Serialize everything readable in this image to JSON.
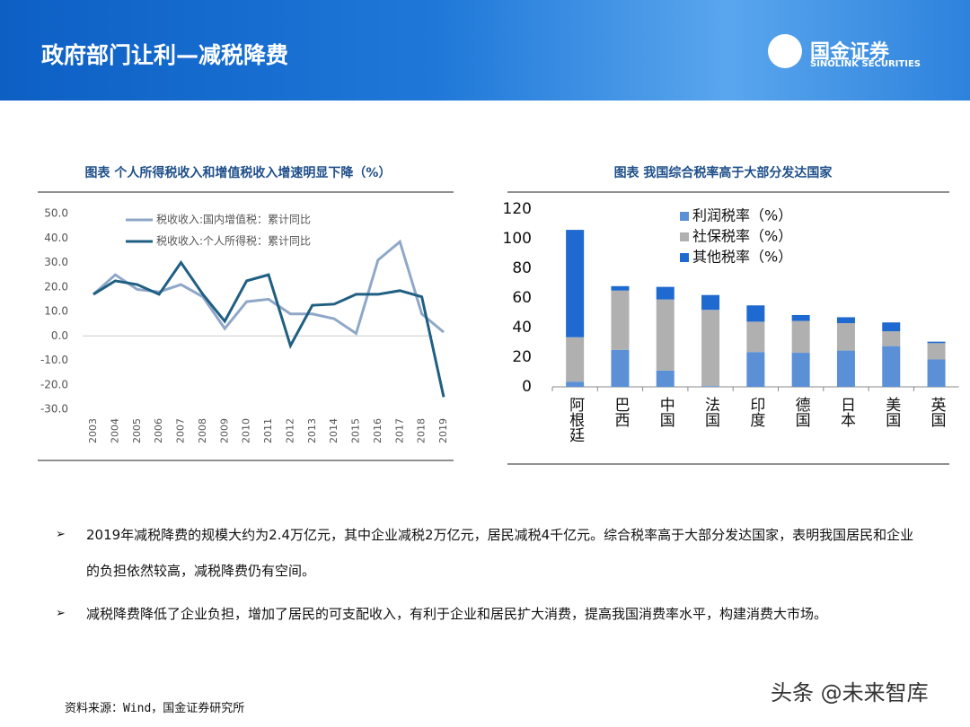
{
  "header": {
    "title": "政府部门让利—减税降费",
    "logo_name": "国金证券",
    "logo_sub": "SINOLINK SECURITIES"
  },
  "chart_data": [
    {
      "type": "line",
      "title": "图表  个人所得税收入和增值税收入增速明显下降（%）",
      "categories": [
        "2003",
        "2004",
        "2005",
        "2006",
        "2007",
        "2008",
        "2009",
        "2010",
        "2011",
        "2012",
        "2013",
        "2014",
        "2015",
        "2016",
        "2017",
        "2018",
        "2019"
      ],
      "series": [
        {
          "name": "税收收入:国内增值税：累计同比",
          "color": "#8fa8c8",
          "values": [
            17,
            25,
            19,
            18,
            21,
            16,
            3,
            14,
            15,
            9,
            9,
            7,
            1,
            31,
            38.5,
            9,
            1.5
          ]
        },
        {
          "name": "税收收入:个人所得税：累计同比",
          "color": "#1f5f82",
          "values": [
            17,
            22.5,
            21,
            17,
            30,
            17,
            6,
            22.5,
            25,
            -4,
            12.5,
            13,
            17,
            17,
            18.5,
            16,
            -25
          ]
        }
      ],
      "ylim": [
        -30,
        50
      ],
      "yticks": [
        {
          "value": 50,
          "label": "50.0"
        },
        {
          "value": 40,
          "label": "40.0"
        },
        {
          "value": 30,
          "label": "30.0"
        },
        {
          "value": 20,
          "label": "20.0"
        },
        {
          "value": 10,
          "label": "10.0"
        },
        {
          "value": 0,
          "label": "0.0"
        },
        {
          "value": -10,
          "label": "-10.0"
        },
        {
          "value": -20,
          "label": "-20.0"
        },
        {
          "value": -30,
          "label": "-30.0"
        }
      ]
    },
    {
      "type": "stacked-bar",
      "title": "图表 我国综合税率高于大部分发达国家",
      "categories": [
        "阿根廷",
        "巴西",
        "中国",
        "法国",
        "印度",
        "德国",
        "日本",
        "美国",
        "英国"
      ],
      "series": [
        {
          "name": "利润税率（%）",
          "color": "#5b8fd6",
          "values": [
            3.5,
            25,
            11,
            0.5,
            23.5,
            23,
            24.5,
            27.5,
            18.5
          ]
        },
        {
          "name": "社保税率（%）",
          "color": "#b0b0b0",
          "values": [
            30,
            40,
            48,
            51.5,
            20.5,
            21.5,
            18.5,
            10,
            11
          ]
        },
        {
          "name": "其他税率（%）",
          "color": "#1f6ad0",
          "values": [
            72.5,
            3,
            8.5,
            10,
            11,
            4,
            4,
            6,
            1
          ]
        }
      ],
      "ylim": [
        0,
        120
      ],
      "yticks": [
        0,
        20,
        40,
        60,
        80,
        100,
        120
      ]
    }
  ],
  "bullets": [
    "2019年减税降费的规模大约为2.4万亿元，其中企业减税2万亿元，居民减税4千亿元。综合税率高于大部分发达国家，表明我国居民和企业的负担依然较高，减税降费仍有空间。",
    "减税降费降低了企业负担，增加了居民的可支配收入，有利于企业和居民扩大消费，提高我国消费率水平，构建消费大市场。"
  ],
  "source": "资料来源：Wind，国金证券研究所",
  "watermark": "头条 @未来智库"
}
